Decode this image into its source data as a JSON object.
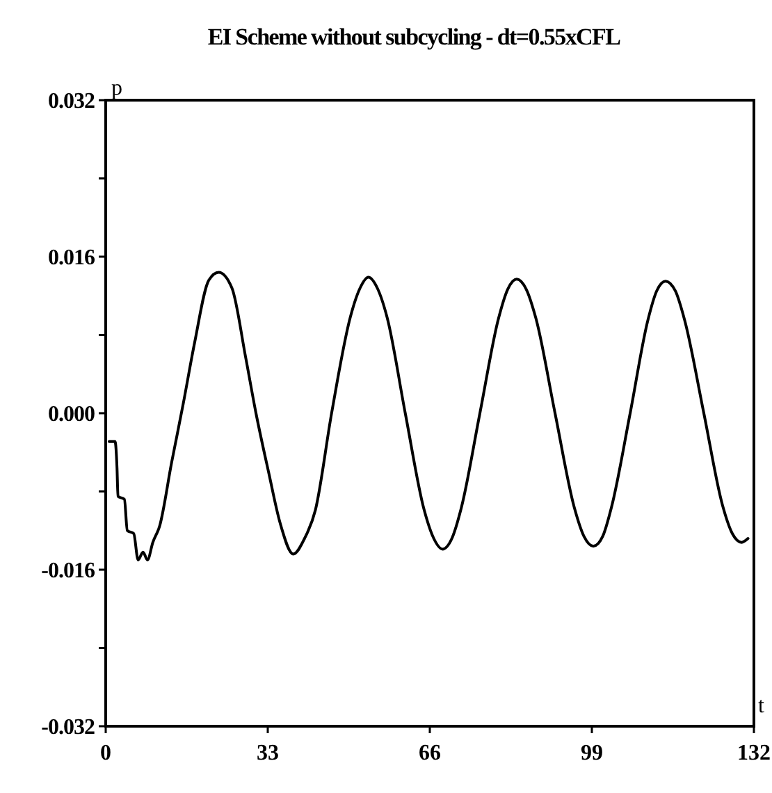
{
  "chart_data": {
    "type": "line",
    "title": "EI Scheme without subcycling - dt=0.55xCFL",
    "xlabel": "t",
    "ylabel": "p",
    "xlim": [
      0,
      132
    ],
    "xticks": [
      0,
      33,
      66,
      99,
      132
    ],
    "ylim": [
      -0.032,
      0.032
    ],
    "yticks": [
      -0.032,
      {
        "value": -0.024,
        "label": null
      },
      -0.016,
      {
        "value": -0.008,
        "label": null
      },
      {
        "value": 0,
        "label": "0.000"
      },
      {
        "value": 0.008,
        "label": null
      },
      0.016,
      {
        "value": 0.024,
        "label": null
      },
      0.032
    ],
    "grid": false,
    "marker": "none",
    "line_style": "solid",
    "series": [
      {
        "color": "#000000",
        "x": [
          0.7,
          1.9,
          2.3,
          2.5,
          3.8,
          4.4,
          5.7,
          6.6,
          7.6,
          8.5,
          9.6,
          11,
          13.4,
          15.8,
          18.1,
          21,
          23,
          25.7,
          28.5,
          30.6,
          33.2,
          35.5,
          38.2,
          40.5,
          42.7,
          46,
          49.8,
          51.8,
          53.5,
          55.3,
          57.3,
          61,
          64.8,
          66.8,
          68.6,
          70.5,
          72.4,
          76.2,
          80,
          81.9,
          83.7,
          85.6,
          87.6,
          91.5,
          95.4,
          97.4,
          99.3,
          101.2,
          103,
          106.8,
          110.4,
          112.2,
          114,
          116,
          117.9,
          121.8,
          125.6,
          127.6,
          129.5,
          130.8
        ],
        "values": [
          -0.0029,
          -0.0029,
          -0.0056,
          -0.0085,
          -0.0088,
          -0.012,
          -0.0123,
          -0.015,
          -0.0142,
          -0.015,
          -0.0132,
          -0.0115,
          -0.0051,
          0.001,
          0.0072,
          0.0136,
          0.0144,
          0.0128,
          0.0057,
          0,
          -0.0061,
          -0.0112,
          -0.0144,
          -0.0128,
          -0.0099,
          0,
          0.0098,
          0.0128,
          0.0139,
          0.0128,
          0.0098,
          0,
          -0.0098,
          -0.0128,
          -0.0139,
          -0.0128,
          -0.0097,
          0,
          0.0097,
          0.0127,
          0.0137,
          0.0127,
          0.0097,
          0,
          -0.0096,
          -0.0126,
          -0.0136,
          -0.0126,
          -0.0096,
          0,
          0.0095,
          0.0125,
          0.0135,
          0.0125,
          0.0095,
          0,
          -0.0094,
          -0.0123,
          -0.0132,
          -0.0128
        ]
      }
    ]
  }
}
